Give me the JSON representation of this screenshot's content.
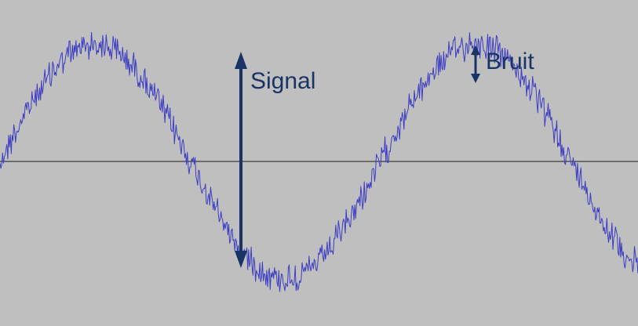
{
  "labels": {
    "signal": "Signal",
    "bruit": "Bruit"
  },
  "colors": {
    "background": "#bfbfbf",
    "waveform": "#3d3dc4",
    "axis": "#1a1a1a",
    "annotation": "#1a3366"
  },
  "icons": {
    "signal_arrow": "double-headed-vertical-arrow",
    "noise_arrow": "double-headed-vertical-arrow"
  }
}
